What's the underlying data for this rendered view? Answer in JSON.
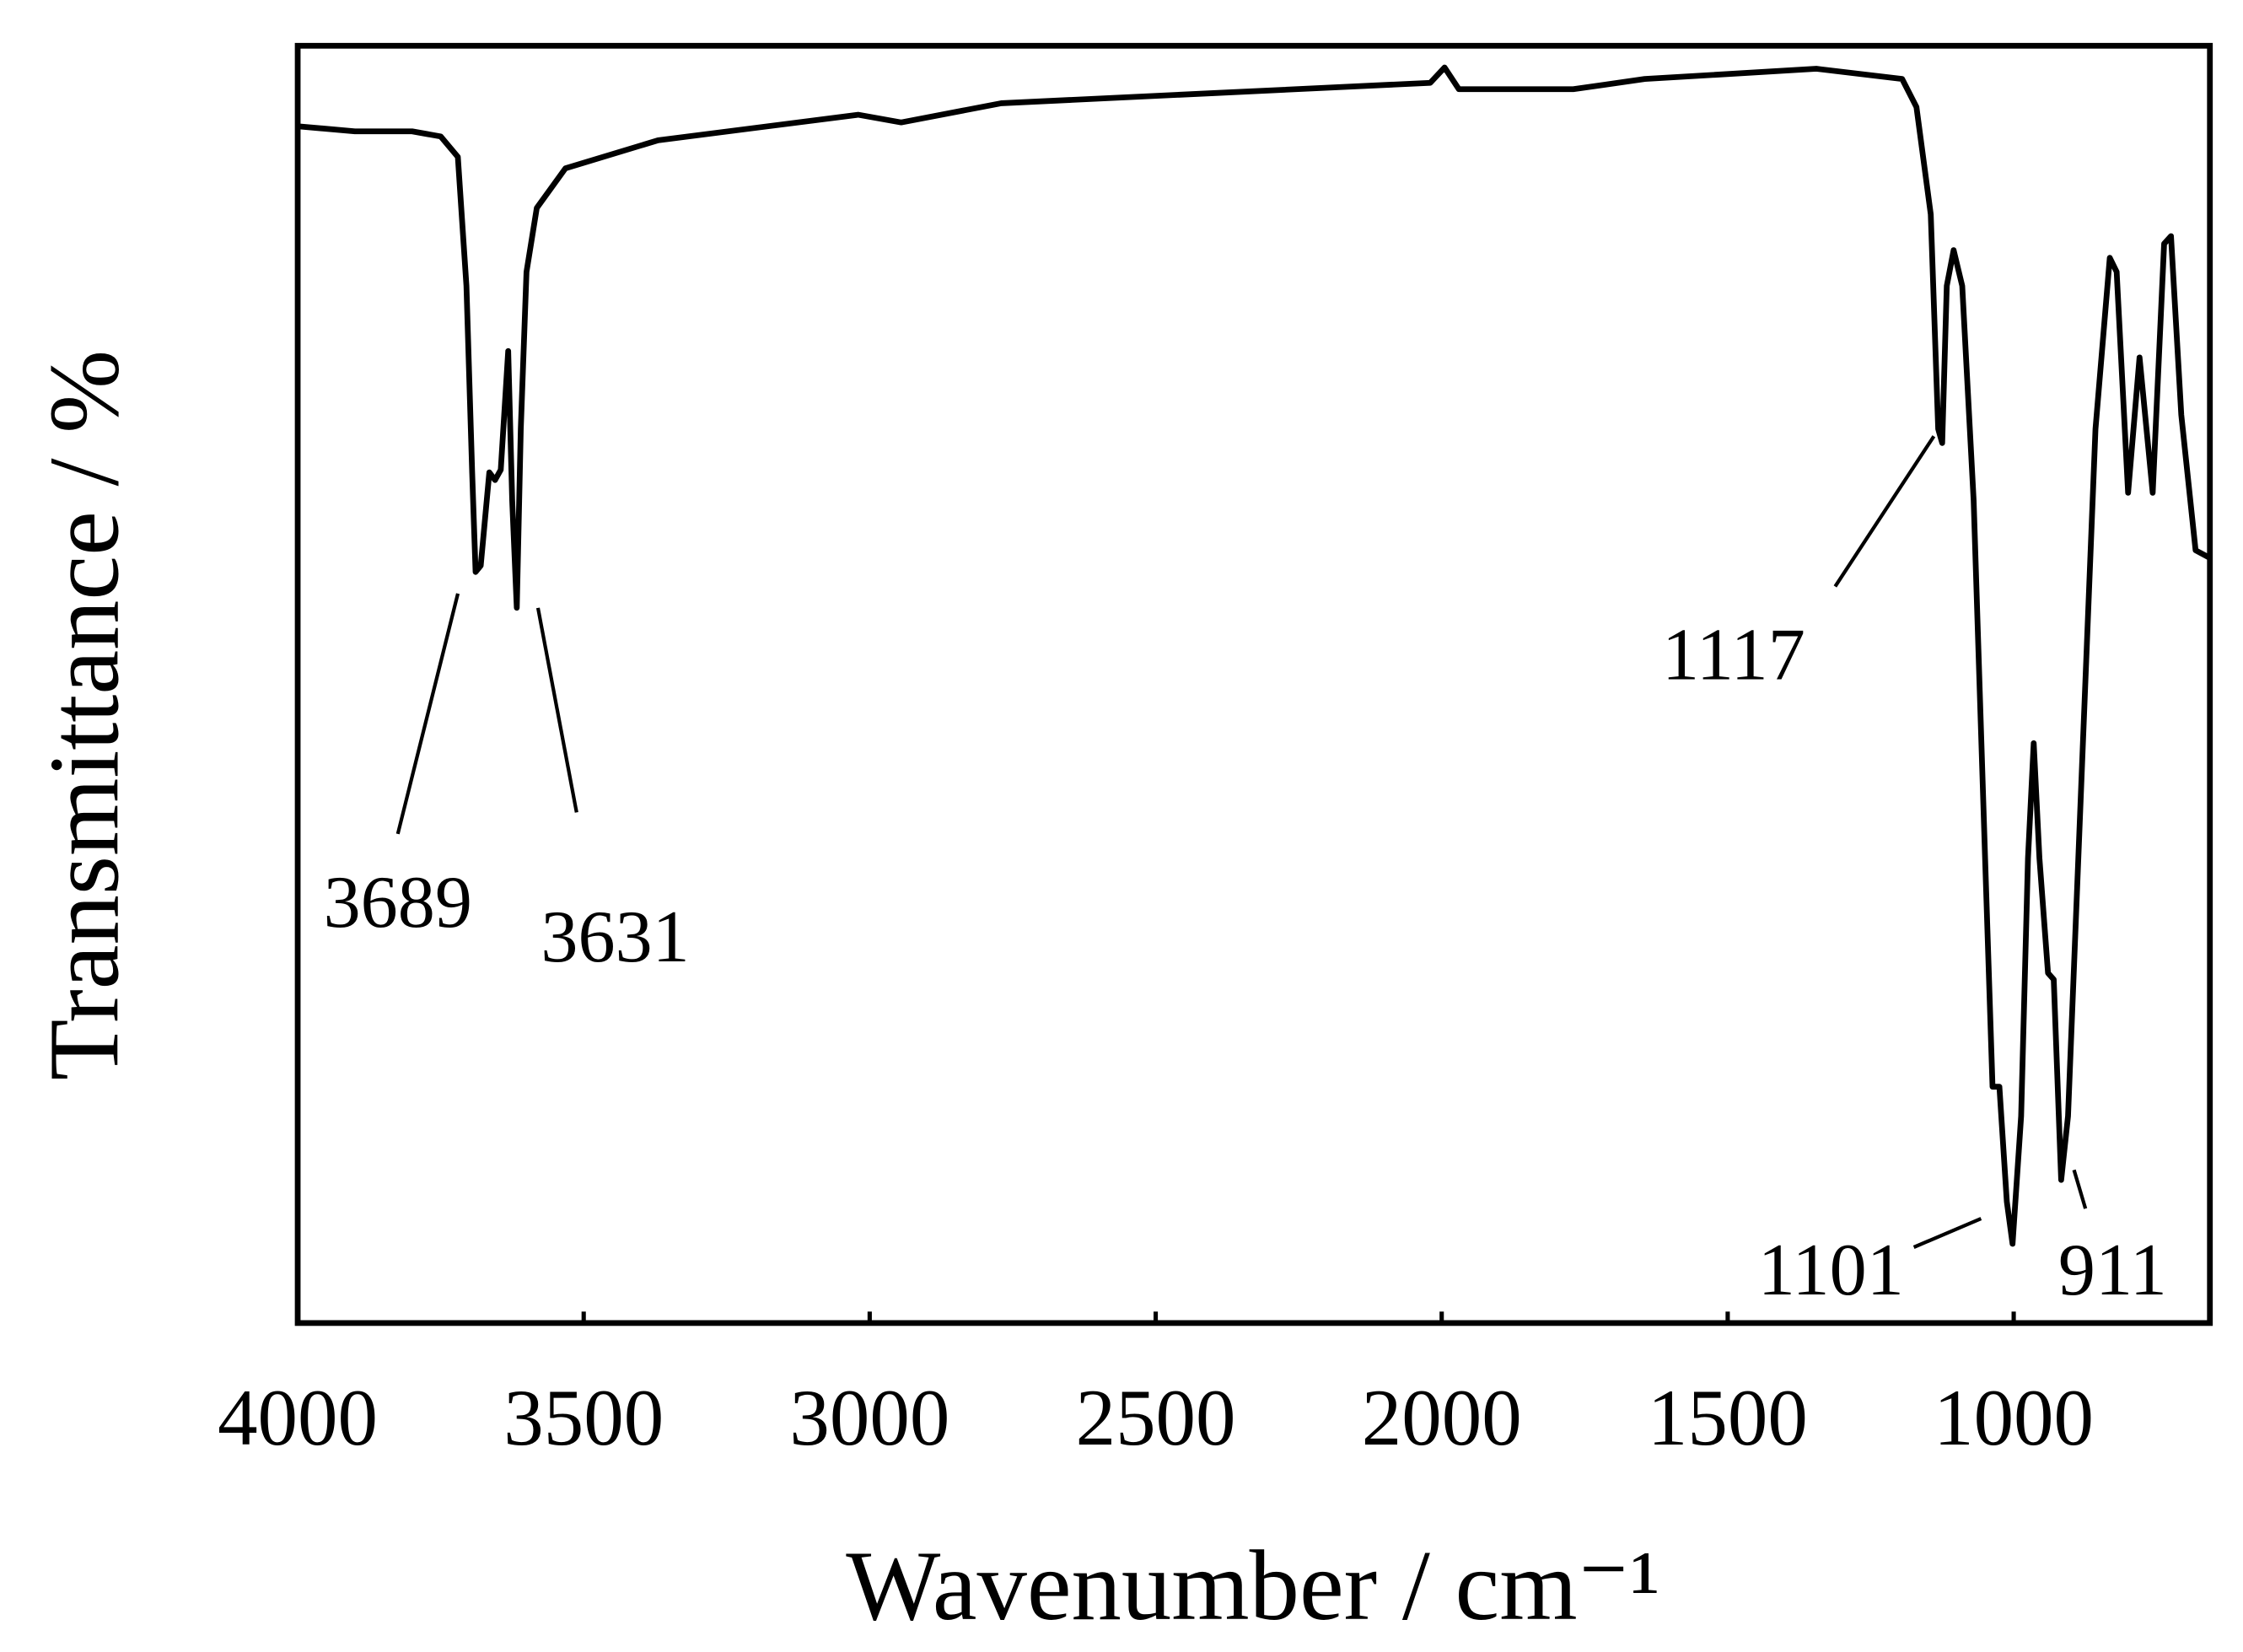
{
  "chart_data": {
    "type": "line",
    "xlabel": "Wavenumber / cm⁻¹",
    "ylabel": "Transmittance / %",
    "xlim": [
      4000,
      657
    ],
    "ylim": [
      0,
      100
    ],
    "xticks": [
      4000,
      3500,
      3000,
      2500,
      2000,
      1500,
      1000
    ],
    "color": "#000000",
    "x": [
      4000,
      3900,
      3800,
      3750,
      3720,
      3705,
      3695,
      3689,
      3680,
      3665,
      3655,
      3645,
      3632,
      3625,
      3617,
      3610,
      3600,
      3582,
      3532,
      3370,
      3020,
      2945,
      2770,
      2395,
      2020,
      1995,
      1970,
      1770,
      1645,
      1345,
      1195,
      1170,
      1145,
      1132,
      1125,
      1117,
      1105,
      1090,
      1070,
      1050,
      1037,
      1025,
      1012,
      1002,
      987,
      975,
      965,
      955,
      940,
      930,
      917,
      905,
      882,
      857,
      832,
      820,
      800,
      780,
      757,
      737,
      725,
      707,
      682,
      657
    ],
    "values": [
      93.7,
      93.3,
      93.3,
      92.9,
      91.3,
      81.2,
      66.6,
      58.8,
      59.3,
      66.6,
      66.0,
      66.8,
      76.1,
      64.4,
      56.0,
      70.0,
      82.3,
      87.3,
      90.4,
      92.6,
      94.6,
      94.0,
      95.5,
      96.3,
      97.1,
      98.3,
      96.6,
      96.6,
      97.4,
      98.2,
      97.4,
      95.2,
      86.8,
      70.0,
      68.9,
      81.2,
      84.0,
      81.2,
      64.4,
      36.4,
      18.5,
      18.5,
      9.5,
      6.2,
      16.2,
      36.4,
      45.4,
      36.4,
      27.4,
      26.9,
      11.2,
      16.2,
      42.0,
      70.0,
      83.4,
      82.3,
      65.0,
      75.6,
      65.0,
      84.5,
      85.1,
      71.1,
      60.5,
      59.9
    ],
    "annotations": [
      "3689",
      "3631",
      "1117",
      "1101",
      "911"
    ]
  }
}
